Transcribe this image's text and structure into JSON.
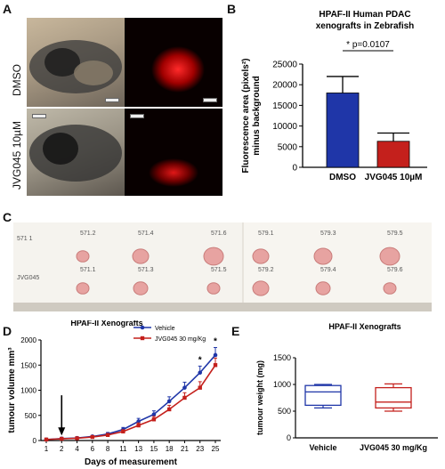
{
  "panels": {
    "a": "A",
    "b": "B",
    "c": "C",
    "d": "D",
    "e": "E"
  },
  "panelA": {
    "row_labels": [
      "DMSO",
      "JVG045 10µM"
    ]
  },
  "panelC": {
    "row_labels": [
      "571 1",
      "JVG045"
    ],
    "top_labels": [
      "571.2",
      "571.4",
      "571.6",
      "579.1",
      "579.3",
      "579.5"
    ],
    "bottom_labels": [
      "571.1",
      "571.3",
      "571.5",
      "579.2",
      "579.4",
      "579.6"
    ]
  },
  "chart_data": [
    {
      "id": "B",
      "type": "bar",
      "title": "HPAF-II Human PDAC xenografts in Zebrafish",
      "title_lines": [
        "HPAF-II Human PDAC",
        "xenografts in Zebrafish"
      ],
      "ylabel": "Fluorescence area (pixels²) minus background",
      "ylabel_lines": [
        "Fluorescence area (pixels²)",
        "minus background"
      ],
      "categories": [
        "DMSO",
        "JVG045 10µM"
      ],
      "values": [
        18000,
        6300
      ],
      "errors": [
        4000,
        2000
      ],
      "colors": [
        "#1f36a8",
        "#c4201c"
      ],
      "ylim": [
        0,
        25000
      ],
      "yticks": [
        "0",
        "5000",
        "10000",
        "15000",
        "20000",
        "25000"
      ],
      "annotation": "* p=0.0107"
    },
    {
      "id": "D",
      "type": "line",
      "title": "HPAF-II Xenografts",
      "xlabel": "Days of measurement",
      "ylabel": "tumour volume mm³",
      "x": [
        "1",
        "2",
        "4",
        "6",
        "8",
        "11",
        "13",
        "15",
        "18",
        "21",
        "23",
        "25"
      ],
      "ylim": [
        0,
        2000
      ],
      "yticks": [
        "0",
        "500",
        "1000",
        "1500",
        "2000"
      ],
      "series": [
        {
          "name": "Vehicle",
          "color": "#1f36a8",
          "values": [
            20,
            40,
            50,
            80,
            130,
            220,
            380,
            520,
            780,
            1050,
            1350,
            1700
          ],
          "errors": [
            5,
            10,
            15,
            20,
            30,
            40,
            60,
            70,
            90,
            110,
            130,
            150
          ]
        },
        {
          "name": "JVG045 30 mg/Kg",
          "color": "#c4201c",
          "values": [
            20,
            35,
            45,
            70,
            110,
            180,
            300,
            420,
            620,
            850,
            1050,
            1500
          ],
          "errors": [
            5,
            8,
            12,
            15,
            25,
            35,
            50,
            60,
            80,
            100,
            120,
            140
          ]
        }
      ],
      "arrow_at": "2",
      "significance": [
        {
          "x": "23",
          "label": "*"
        },
        {
          "x": "25",
          "label": "*"
        }
      ]
    },
    {
      "id": "E",
      "type": "box",
      "title": "HPAF-II Xenografts",
      "ylabel": "tumour weight (mg)",
      "categories": [
        "Vehicle",
        "JVG045 30 mg/Kg"
      ],
      "colors": [
        "#1f36a8",
        "#c4201c"
      ],
      "boxes": [
        {
          "min": 560,
          "q1": 610,
          "median": 860,
          "q3": 980,
          "max": 1000
        },
        {
          "min": 500,
          "q1": 560,
          "median": 670,
          "q3": 940,
          "max": 1010
        }
      ],
      "ylim": [
        0,
        1500
      ],
      "yticks": [
        "0",
        "500",
        "1000",
        "1500"
      ]
    }
  ]
}
